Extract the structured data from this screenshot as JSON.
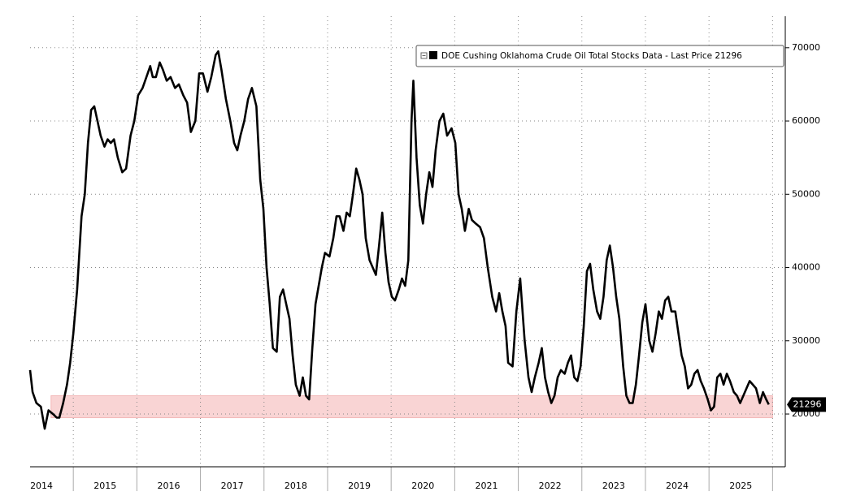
{
  "chart_data": {
    "type": "line",
    "xlim": [
      2014.32,
      2026.2
    ],
    "ylim": [
      12800,
      74300
    ],
    "yticks": [
      20000,
      30000,
      40000,
      50000,
      60000,
      70000
    ],
    "xgrid": [
      2015,
      2016,
      2017,
      2018,
      2019,
      2020,
      2021,
      2022,
      2023,
      2024,
      2025,
      2026
    ],
    "xticks": [
      {
        "value": 2014.5,
        "label": "2014"
      },
      {
        "value": 2015.5,
        "label": "2015"
      },
      {
        "value": 2016.5,
        "label": "2016"
      },
      {
        "value": 2017.5,
        "label": "2017"
      },
      {
        "value": 2018.5,
        "label": "2018"
      },
      {
        "value": 2019.5,
        "label": "2019"
      },
      {
        "value": 2020.5,
        "label": "2020"
      },
      {
        "value": 2021.5,
        "label": "2021"
      },
      {
        "value": 2022.5,
        "label": "2022"
      },
      {
        "value": 2023.5,
        "label": "2023"
      },
      {
        "value": 2024.5,
        "label": "2024"
      },
      {
        "value": 2025.5,
        "label": "2025"
      }
    ],
    "grid": true,
    "legend": "top-right",
    "highlight": {
      "xlim": [
        2014.65,
        2026.0
      ],
      "ylim": [
        19500,
        22500
      ],
      "color": "#f9d4d4"
    },
    "last_price": 21296,
    "series": [
      {
        "name": "DOE Cushing Oklahoma Crude Oil Total Stocks Data - Last Price 21296",
        "color": "#000000",
        "x": [
          2014.32,
          2014.36,
          2014.42,
          2014.49,
          2014.55,
          2014.61,
          2014.68,
          2014.74,
          2014.78,
          2014.84,
          2014.9,
          2014.95,
          2015.0,
          2015.06,
          2015.13,
          2015.18,
          2015.23,
          2015.28,
          2015.33,
          2015.38,
          2015.43,
          2015.49,
          2015.54,
          2015.59,
          2015.64,
          2015.7,
          2015.77,
          2015.83,
          2015.9,
          2015.96,
          2016.02,
          2016.09,
          2016.15,
          2016.21,
          2016.25,
          2016.3,
          2016.36,
          2016.41,
          2016.47,
          2016.53,
          2016.6,
          2016.66,
          2016.73,
          2016.79,
          2016.85,
          2016.92,
          2016.98,
          2017.04,
          2017.11,
          2017.17,
          2017.24,
          2017.28,
          2017.33,
          2017.4,
          2017.47,
          2017.53,
          2017.58,
          2017.63,
          2017.69,
          2017.75,
          2017.81,
          2017.88,
          2017.94,
          2017.99,
          2018.04,
          2018.09,
          2018.14,
          2018.2,
          2018.25,
          2018.3,
          2018.35,
          2018.4,
          2018.45,
          2018.5,
          2018.56,
          2018.61,
          2018.66,
          2018.71,
          2018.76,
          2018.81,
          2018.86,
          2018.91,
          2018.96,
          2019.03,
          2019.09,
          2019.14,
          2019.19,
          2019.25,
          2019.3,
          2019.35,
          2019.4,
          2019.45,
          2019.5,
          2019.55,
          2019.6,
          2019.66,
          2019.71,
          2019.76,
          2019.81,
          2019.86,
          2019.91,
          2019.96,
          2020.01,
          2020.06,
          2020.12,
          2020.17,
          2020.22,
          2020.27,
          2020.32,
          2020.35,
          2020.4,
          2020.45,
          2020.5,
          2020.55,
          2020.6,
          2020.65,
          2020.7,
          2020.76,
          2020.82,
          2020.88,
          2020.95,
          2021.01,
          2021.06,
          2021.11,
          2021.16,
          2021.22,
          2021.27,
          2021.33,
          2021.4,
          2021.46,
          2021.52,
          2021.59,
          2021.65,
          2021.7,
          2021.75,
          2021.8,
          2021.84,
          2021.91,
          2021.97,
          2022.03,
          2022.1,
          2022.16,
          2022.21,
          2022.26,
          2022.32,
          2022.37,
          2022.42,
          2022.47,
          2022.52,
          2022.57,
          2022.62,
          2022.67,
          2022.73,
          2022.78,
          2022.83,
          2022.88,
          2022.93,
          2022.98,
          2023.03,
          2023.08,
          2023.13,
          2023.18,
          2023.24,
          2023.29,
          2023.34,
          2023.39,
          2023.44,
          2023.49,
          2023.54,
          2023.59,
          2023.65,
          2023.7,
          2023.75,
          2023.8,
          2023.85,
          2023.9,
          2023.95,
          2024.0,
          2024.06,
          2024.11,
          2024.16,
          2024.21,
          2024.26,
          2024.31,
          2024.36,
          2024.41,
          2024.47,
          2024.52,
          2024.57,
          2024.62,
          2024.67,
          2024.72,
          2024.77,
          2024.82,
          2024.87,
          2024.92,
          2024.98,
          2025.03,
          2025.08,
          2025.13,
          2025.18,
          2025.23,
          2025.28,
          2025.33,
          2025.39,
          2025.44,
          2025.49,
          2025.54,
          2025.59,
          2025.64,
          2025.69,
          2025.74,
          2025.8,
          2025.85,
          2025.9,
          2025.94
        ],
        "values": [
          26000,
          23000,
          21500,
          21000,
          18000,
          20500,
          20000,
          19500,
          19500,
          21500,
          24000,
          27000,
          31000,
          37000,
          47000,
          50000,
          57000,
          61500,
          62000,
          60000,
          58000,
          56500,
          57500,
          57000,
          57500,
          55000,
          53000,
          53500,
          58000,
          60000,
          63500,
          64500,
          66000,
          67500,
          66000,
          66000,
          68000,
          67000,
          65500,
          66000,
          64500,
          65000,
          63500,
          62500,
          58500,
          60000,
          66500,
          66500,
          64000,
          66000,
          69000,
          69500,
          67000,
          63000,
          60000,
          57000,
          56000,
          58000,
          60000,
          63000,
          64500,
          62000,
          52000,
          48000,
          40000,
          35000,
          29000,
          28500,
          36000,
          37000,
          35000,
          33000,
          28000,
          24000,
          22500,
          25000,
          22500,
          22000,
          29000,
          35000,
          37500,
          40000,
          42000,
          41500,
          44000,
          47000,
          47000,
          45000,
          47500,
          47000,
          50000,
          53500,
          52000,
          50000,
          44000,
          41000,
          40000,
          39000,
          43000,
          47500,
          42000,
          38000,
          36000,
          35500,
          37000,
          38500,
          37500,
          41000,
          60000,
          65500,
          55000,
          48500,
          46000,
          50000,
          53000,
          51000,
          56000,
          60000,
          61000,
          58000,
          59000,
          57000,
          50000,
          48000,
          45000,
          48000,
          46500,
          46000,
          45500,
          44000,
          40000,
          36000,
          34000,
          36500,
          34000,
          32000,
          27000,
          26500,
          34000,
          38500,
          30000,
          25000,
          23000,
          25000,
          27000,
          29000,
          25000,
          23000,
          21500,
          22500,
          25000,
          26000,
          25500,
          27000,
          28000,
          25000,
          24500,
          26500,
          32000,
          39500,
          40500,
          37000,
          34000,
          33000,
          36000,
          41000,
          43000,
          40000,
          36000,
          33000,
          26500,
          22500,
          21500,
          21500,
          24000,
          28000,
          32500,
          35000,
          30000,
          28500,
          31000,
          34000,
          33000,
          35500,
          36000,
          34000,
          34000,
          31000,
          28000,
          26500,
          23500,
          24000,
          25500,
          26000,
          24500,
          23500,
          22000,
          20500,
          21000,
          25000,
          25500,
          24000,
          25500,
          24500,
          23000,
          22500,
          21500,
          22500,
          23500,
          24500,
          24000,
          23500,
          21500,
          23000,
          22000,
          21296
        ]
      }
    ]
  }
}
